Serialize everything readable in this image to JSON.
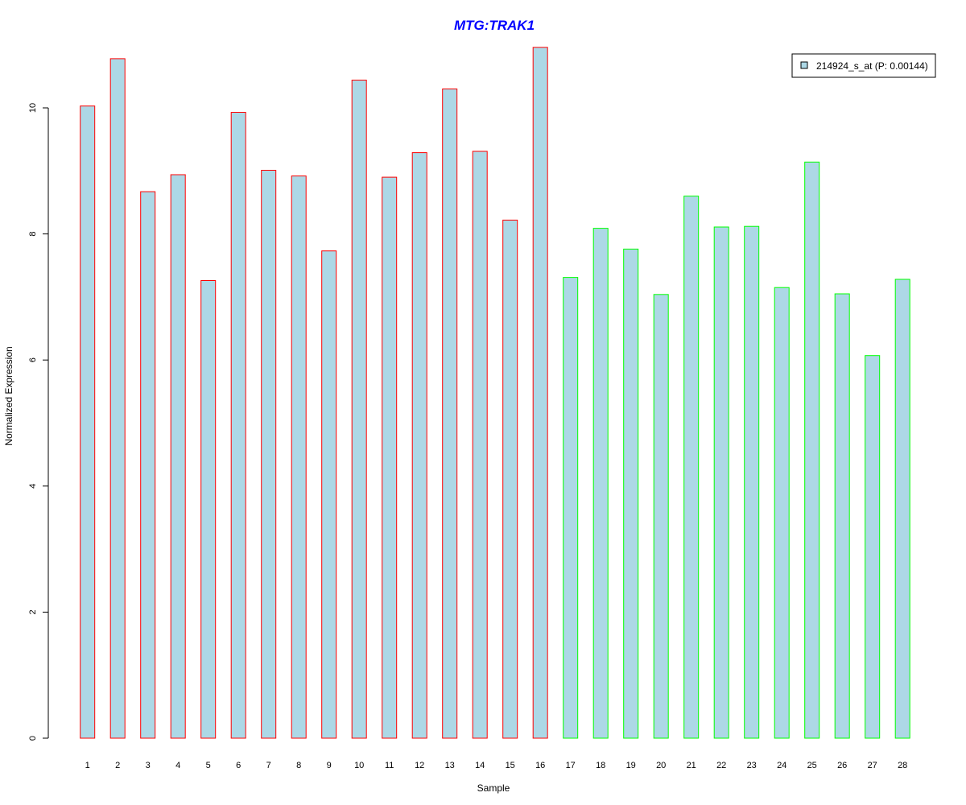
{
  "chart_data": {
    "type": "bar",
    "title": "MTG:TRAK1",
    "xlabel": "Sample",
    "ylabel": "Normalized Expression",
    "categories": [
      "1",
      "2",
      "3",
      "4",
      "5",
      "6",
      "7",
      "8",
      "9",
      "10",
      "11",
      "12",
      "13",
      "14",
      "15",
      "16",
      "17",
      "18",
      "19",
      "20",
      "21",
      "22",
      "23",
      "24",
      "25",
      "26",
      "27",
      "28"
    ],
    "yticks": [
      "0",
      "2",
      "4",
      "6",
      "8",
      "10"
    ],
    "ylim": [
      0,
      10.9
    ],
    "series": [
      {
        "name": "214924_s_at (P: 0.00144)",
        "values": [
          10.03,
          10.78,
          8.67,
          8.94,
          7.26,
          9.93,
          9.01,
          8.92,
          7.73,
          10.44,
          8.9,
          9.29,
          10.3,
          9.31,
          8.22,
          10.96,
          7.31,
          8.09,
          7.76,
          7.04,
          8.6,
          8.11,
          8.12,
          7.15,
          9.14,
          7.05,
          6.07,
          7.28
        ]
      }
    ],
    "groups": [
      {
        "from": 1,
        "to": 16,
        "border_color": "#ff0000"
      },
      {
        "from": 17,
        "to": 28,
        "border_color": "#00ff00"
      }
    ],
    "bar_fill": "#add8e6",
    "title_color": "#0000ff",
    "legend": {
      "label": "214924_s_at (P: 0.00144)",
      "placement": "top-right",
      "swatch_color": "#add8e6"
    },
    "grid": false
  }
}
